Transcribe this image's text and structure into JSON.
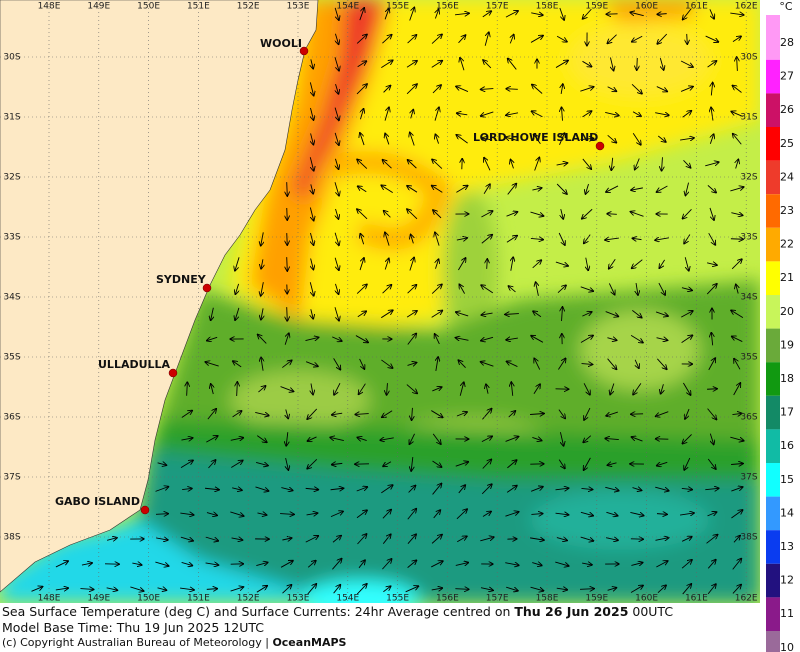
{
  "map": {
    "longitudes": [
      "148E",
      "149E",
      "150E",
      "151E",
      "152E",
      "153E",
      "154E",
      "155E",
      "156E",
      "157E",
      "158E",
      "159E",
      "160E",
      "161E",
      "162E"
    ],
    "latitudes": [
      "30S",
      "31S",
      "32S",
      "33S",
      "34S",
      "35S",
      "36S",
      "37S",
      "38S"
    ],
    "places": [
      {
        "name": "WOOLI"
      },
      {
        "name": "LORD HOWE ISLAND"
      },
      {
        "name": "SYDNEY"
      },
      {
        "name": "ULLADULLA"
      },
      {
        "name": "GABO ISLAND"
      }
    ]
  },
  "colorbar": {
    "unit": "°C",
    "levels": [
      28,
      27,
      26,
      25,
      24,
      23,
      22,
      21,
      20,
      19,
      18,
      17,
      16,
      15,
      14,
      13,
      12,
      11,
      10
    ],
    "colors": [
      "#ff99f5",
      "#ff22ff",
      "#cc1166",
      "#ff0000",
      "#ee3b2b",
      "#ff6a00",
      "#ffaa00",
      "#ffff00",
      "#c8f55a",
      "#6aaa3a",
      "#119911",
      "#138a66",
      "#11bba5",
      "#11ffff",
      "#3399ff",
      "#0a3cf0",
      "#22117f",
      "#8a1a8a",
      "#9a6a9a"
    ]
  },
  "footer": {
    "line1": "Sea Surface Temperature (deg C) and Surface Currents: 24hr Average centred on ",
    "date": "Thu 26 Jun 2025",
    "time": " 00UTC",
    "line2": "Model Base Time: Thu 19 Jun 2025 12UTC",
    "line3": "(c) Copyright Australian Bureau of Meteorology | ",
    "brand": "OceanMAPS"
  }
}
